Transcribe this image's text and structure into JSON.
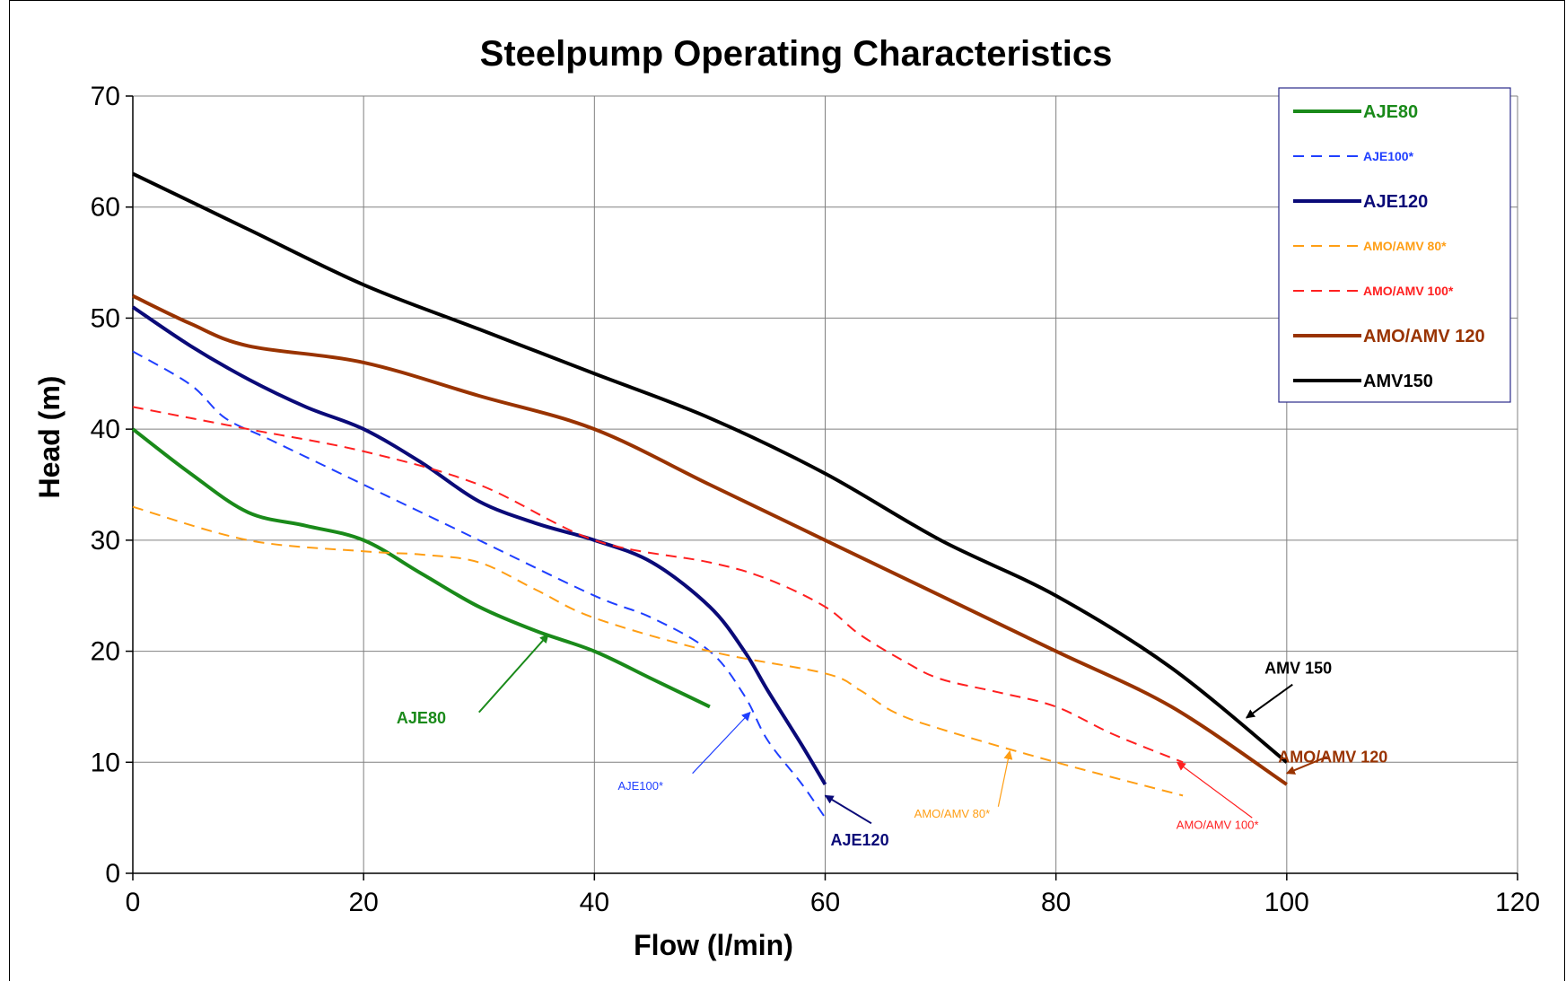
{
  "chart_data": {
    "type": "line",
    "title": "Steelpump Operating Characteristics",
    "xlabel": "Flow (l/min)",
    "ylabel": "Head (m)",
    "xlim": [
      0,
      120
    ],
    "ylim": [
      0,
      70
    ],
    "xticks": [
      0,
      20,
      40,
      60,
      80,
      100,
      120
    ],
    "yticks": [
      0,
      10,
      20,
      30,
      40,
      50,
      60,
      70
    ],
    "grid": true,
    "legend_position": "top-right",
    "series": [
      {
        "name": "AJE80",
        "color": "#1a8a1a",
        "dash": "solid",
        "width": 4,
        "small": false,
        "x": [
          0,
          5,
          10,
          15,
          20,
          25,
          30,
          35,
          40,
          45,
          50
        ],
        "y": [
          40,
          36,
          32.5,
          31.3,
          30,
          27,
          24,
          21.8,
          20,
          17.5,
          15
        ]
      },
      {
        "name": "AJE100*",
        "color": "#1f3fff",
        "dash": "dashed",
        "width": 2,
        "small": true,
        "x": [
          0,
          5,
          8,
          12,
          20,
          30,
          40,
          45,
          50,
          53,
          55,
          58,
          60
        ],
        "y": [
          47,
          44,
          41,
          39,
          35,
          30,
          25,
          23,
          20,
          16,
          12,
          8,
          5
        ]
      },
      {
        "name": "AJE120",
        "color": "#0a0a78",
        "dash": "solid",
        "width": 4,
        "small": false,
        "x": [
          0,
          5,
          10,
          15,
          20,
          25,
          30,
          35,
          40,
          45,
          50,
          53,
          55,
          58,
          60
        ],
        "y": [
          51,
          47.5,
          44.5,
          42,
          40,
          37,
          33.5,
          31.5,
          30,
          28,
          24,
          20,
          16.5,
          11.5,
          8
        ]
      },
      {
        "name": "AMO/AMV 80*",
        "color": "#ff9e14",
        "dash": "dashed",
        "width": 2,
        "small": true,
        "x": [
          0,
          10,
          20,
          25,
          30,
          35,
          40,
          50,
          60,
          63,
          66,
          70,
          80,
          91
        ],
        "y": [
          33,
          30,
          29,
          28.7,
          28,
          25.5,
          23,
          20,
          18,
          16.5,
          14.5,
          13,
          10,
          7
        ]
      },
      {
        "name": "AMO/AMV 100*",
        "color": "#ff2020",
        "dash": "dashed",
        "width": 2,
        "small": true,
        "x": [
          0,
          10,
          20,
          30,
          40,
          50,
          55,
          60,
          63,
          67,
          70,
          75,
          80,
          85,
          91
        ],
        "y": [
          42,
          40,
          38,
          35,
          30,
          28,
          26.5,
          24,
          21.5,
          19,
          17.5,
          16.3,
          15,
          12.5,
          10
        ]
      },
      {
        "name": "AMO/AMV 120",
        "color": "#993300",
        "dash": "solid",
        "width": 4,
        "small": false,
        "x": [
          0,
          5,
          10,
          20,
          30,
          40,
          50,
          60,
          70,
          80,
          90,
          100
        ],
        "y": [
          52,
          49.5,
          47.5,
          46,
          43,
          40,
          35,
          30,
          25,
          20,
          15,
          8
        ]
      },
      {
        "name": "AMV150",
        "color": "#000000",
        "dash": "solid",
        "width": 4,
        "small": false,
        "x": [
          0,
          10,
          20,
          30,
          40,
          50,
          60,
          70,
          80,
          90,
          100
        ],
        "y": [
          63,
          58,
          53,
          49,
          45,
          41,
          36,
          30,
          25,
          18.5,
          10
        ]
      }
    ],
    "annotations": [
      {
        "text": "AJE80",
        "color": "#1a8a1a",
        "bold": true,
        "tx": 25,
        "ty": 13.5,
        "ax": 35,
        "ay": 21.5,
        "tipx": 36,
        "tipy": 21.5
      },
      {
        "text": "AJE100*",
        "color": "#1f3fff",
        "bold": false,
        "tx": 44,
        "ty": 7.5,
        "ax": 54,
        "ay": 15,
        "tipx": 53.5,
        "tipy": 14.5
      },
      {
        "text": "AJE120",
        "color": "#0a0a78",
        "bold": true,
        "tx": 63,
        "ty": 2.5,
        "ax": 60,
        "ay": 7,
        "tipx": 60,
        "tipy": 7
      },
      {
        "text": "AMO/AMV 80*",
        "color": "#ff9e14",
        "bold": false,
        "tx": 71,
        "ty": 5,
        "ax": 76,
        "ay": 11,
        "tipx": 76,
        "tipy": 11
      },
      {
        "text": "AMO/AMV 100*",
        "color": "#ff2020",
        "bold": false,
        "tx": 94,
        "ty": 4,
        "ax": 90.5,
        "ay": 10,
        "tipx": 90.5,
        "tipy": 10
      },
      {
        "text": "AMO/AMV 120",
        "color": "#993300",
        "bold": true,
        "tx": 104,
        "ty": 10,
        "ax": 100,
        "ay": 9,
        "tipx": 100,
        "tipy": 9
      },
      {
        "text": "AMV 150",
        "color": "#000000",
        "bold": true,
        "tx": 101,
        "ty": 18,
        "ax": 96.5,
        "ay": 14,
        "tipx": 96.5,
        "tipy": 14
      }
    ]
  }
}
